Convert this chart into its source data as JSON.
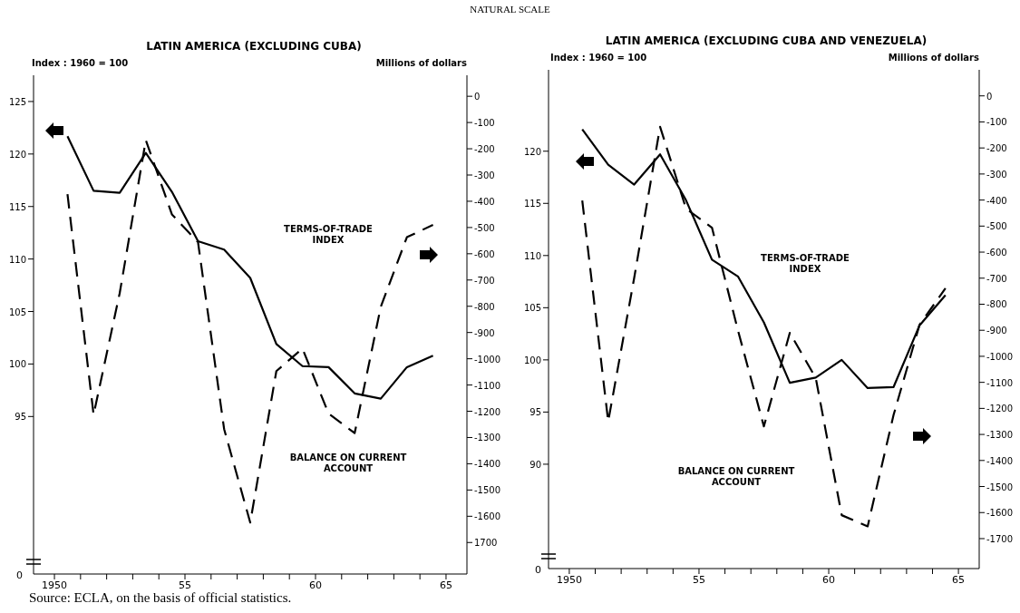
{
  "chart_data": [
    {
      "type": "line",
      "subtitle": "NATURAL SCALE",
      "title": "LATIN AMERICA (EXCLUDING CUBA)",
      "ylabel": "Index : 1960 = 100",
      "y2label": "Millions of dollars",
      "x": [
        1950.5,
        1951.5,
        1952.5,
        1953.5,
        1954.5,
        1955.5,
        1956.5,
        1957.5,
        1958.5,
        1959.5,
        1960.5,
        1961.5,
        1962.5,
        1963.5,
        1964.5
      ],
      "series": [
        {
          "color": "#000000",
          "line_style": "solid",
          "values": [
            121.7,
            116.5,
            116.3,
            120.1,
            116.4,
            111.7,
            110.9,
            108.2,
            101.9,
            99.8,
            99.7,
            97.2,
            96.7,
            99.7,
            100.8
          ]
        },
        {
          "color": "#000000",
          "line_style": "dashed",
          "axis": "y2",
          "values": [
            -373,
            -1213,
            -750,
            -167,
            -450,
            -556,
            -1268,
            -1624,
            -1047,
            -961,
            -1209,
            -1283,
            -802,
            -537,
            -490
          ]
        }
      ],
      "xlim": [
        1949.2,
        1965.8
      ],
      "xticks": [
        1950,
        {
          "value": 1951,
          "label": null
        },
        {
          "value": 1952,
          "label": null
        },
        {
          "value": 1953,
          "label": null
        },
        {
          "value": 1954,
          "label": null
        },
        {
          "value": 1955,
          "label": "55"
        },
        {
          "value": 1956,
          "label": null
        },
        {
          "value": 1957,
          "label": null
        },
        {
          "value": 1958,
          "label": null
        },
        {
          "value": 1959,
          "label": null
        },
        {
          "value": 1960,
          "label": "60"
        },
        {
          "value": 1961,
          "label": null
        },
        {
          "value": 1962,
          "label": null
        },
        {
          "value": 1963,
          "label": null
        },
        {
          "value": 1964,
          "label": null
        },
        {
          "value": 1965,
          "label": "65"
        }
      ],
      "ylim": [
        80,
        127.5
      ],
      "yticks": [
        95,
        100,
        105,
        110,
        115,
        120,
        125
      ],
      "y2lim": [
        -1820,
        80
      ],
      "y2ticks": [
        0,
        -100,
        -200,
        -300,
        -400,
        -500,
        -600,
        -700,
        -800,
        -900,
        -1000,
        -1100,
        -1200,
        -1300,
        -1400,
        -1500,
        -1600,
        {
          "value": -1700,
          "label": "1700"
        }
      ],
      "annotations": [
        "0",
        "TERMS-OF-TRADE\nINDEX",
        "BALANCE ON CURRENT\nACCOUNT",
        "Source: ECLA, on the basis of official statistics."
      ]
    },
    {
      "type": "line",
      "title": "LATIN AMERICA (EXCLUDING CUBA AND VENEZUELA)",
      "ylabel": "Index : 1960 = 100",
      "y2label": "Millions of dollars",
      "x": [
        1950.5,
        1951.5,
        1952.5,
        1953.5,
        1954.5,
        1955.5,
        1956.5,
        1957.5,
        1958.5,
        1959.5,
        1960.5,
        1961.5,
        1962.5,
        1963.5,
        1964.5
      ],
      "series": [
        {
          "color": "#000000",
          "line_style": "solid",
          "values": [
            122.1,
            118.7,
            116.8,
            119.7,
            115.3,
            109.6,
            108.0,
            103.6,
            97.8,
            98.3,
            100.0,
            97.3,
            97.4,
            103.3,
            106.2
          ]
        },
        {
          "color": "#000000",
          "line_style": "dashed",
          "axis": "y2",
          "values": [
            -402,
            -1250,
            -700,
            -119,
            -433,
            -506,
            -900,
            -1269,
            -910,
            -1083,
            -1610,
            -1653,
            -1225,
            -879,
            -739
          ]
        }
      ],
      "xlim": [
        1949.2,
        1965.8
      ],
      "xticks": [
        1950,
        {
          "value": 1951,
          "label": null
        },
        {
          "value": 1952,
          "label": null
        },
        {
          "value": 1953,
          "label": null
        },
        {
          "value": 1954,
          "label": null
        },
        {
          "value": 1955,
          "label": "55"
        },
        {
          "value": 1956,
          "label": null
        },
        {
          "value": 1957,
          "label": null
        },
        {
          "value": 1958,
          "label": null
        },
        {
          "value": 1959,
          "label": null
        },
        {
          "value": 1960,
          "label": "60"
        },
        {
          "value": 1961,
          "label": null
        },
        {
          "value": 1962,
          "label": null
        },
        {
          "value": 1963,
          "label": null
        },
        {
          "value": 1964,
          "label": null
        },
        {
          "value": 1965,
          "label": "65"
        }
      ],
      "ylim": [
        80,
        127.8
      ],
      "yticks": [
        90,
        95,
        100,
        105,
        110,
        115,
        120
      ],
      "y2lim": [
        -1815,
        100
      ],
      "y2ticks": [
        0,
        -100,
        -200,
        -300,
        -400,
        -500,
        -600,
        -700,
        -800,
        -900,
        -1000,
        -1100,
        -1200,
        -1300,
        -1400,
        -1500,
        -1600,
        -1700
      ],
      "annotations": [
        "0",
        "TERMS-OF-TRADE\nINDEX",
        "BALANCE ON CURRENT\nACCOUNT"
      ]
    }
  ]
}
